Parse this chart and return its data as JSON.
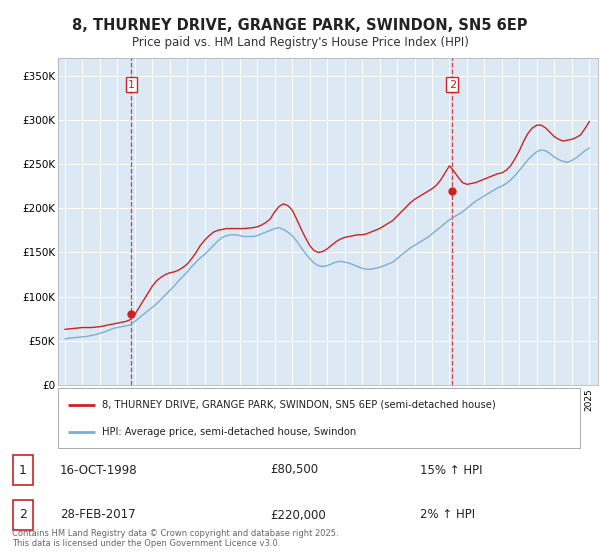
{
  "title_line1": "8, THURNEY DRIVE, GRANGE PARK, SWINDON, SN5 6EP",
  "title_line2": "Price paid vs. HM Land Registry's House Price Index (HPI)",
  "background_color": "#ffffff",
  "plot_bg_color": "#dce9f5",
  "grid_color": "#ffffff",
  "red_color": "#cc2222",
  "blue_color": "#7aaed6",
  "vline_color": "#cc2222",
  "ylim_min": 0,
  "ylim_max": 370000,
  "yticks": [
    0,
    50000,
    100000,
    150000,
    200000,
    250000,
    300000,
    350000
  ],
  "ytick_labels": [
    "£0",
    "£50K",
    "£100K",
    "£150K",
    "£200K",
    "£250K",
    "£300K",
    "£350K"
  ],
  "sale1_year": 1998.79,
  "sale1_price": 80500,
  "sale2_year": 2017.16,
  "sale2_price": 220000,
  "legend_line1": "8, THURNEY DRIVE, GRANGE PARK, SWINDON, SN5 6EP (semi-detached house)",
  "legend_line2": "HPI: Average price, semi-detached house, Swindon",
  "sale1_date_str": "16-OCT-1998",
  "sale1_price_str": "£80,500",
  "sale1_hpi_str": "15% ↑ HPI",
  "sale2_date_str": "28-FEB-2017",
  "sale2_price_str": "£220,000",
  "sale2_hpi_str": "2% ↑ HPI",
  "footnote": "Contains HM Land Registry data © Crown copyright and database right 2025.\nThis data is licensed under the Open Government Licence v3.0.",
  "hpi_x": [
    1995.0,
    1995.25,
    1995.5,
    1995.75,
    1996.0,
    1996.25,
    1996.5,
    1996.75,
    1997.0,
    1997.25,
    1997.5,
    1997.75,
    1998.0,
    1998.25,
    1998.5,
    1998.75,
    1999.0,
    1999.25,
    1999.5,
    1999.75,
    2000.0,
    2000.25,
    2000.5,
    2000.75,
    2001.0,
    2001.25,
    2001.5,
    2001.75,
    2002.0,
    2002.25,
    2002.5,
    2002.75,
    2003.0,
    2003.25,
    2003.5,
    2003.75,
    2004.0,
    2004.25,
    2004.5,
    2004.75,
    2005.0,
    2005.25,
    2005.5,
    2005.75,
    2006.0,
    2006.25,
    2006.5,
    2006.75,
    2007.0,
    2007.25,
    2007.5,
    2007.75,
    2008.0,
    2008.25,
    2008.5,
    2008.75,
    2009.0,
    2009.25,
    2009.5,
    2009.75,
    2010.0,
    2010.25,
    2010.5,
    2010.75,
    2011.0,
    2011.25,
    2011.5,
    2011.75,
    2012.0,
    2012.25,
    2012.5,
    2012.75,
    2013.0,
    2013.25,
    2013.5,
    2013.75,
    2014.0,
    2014.25,
    2014.5,
    2014.75,
    2015.0,
    2015.25,
    2015.5,
    2015.75,
    2016.0,
    2016.25,
    2016.5,
    2016.75,
    2017.0,
    2017.25,
    2017.5,
    2017.75,
    2018.0,
    2018.25,
    2018.5,
    2018.75,
    2019.0,
    2019.25,
    2019.5,
    2019.75,
    2020.0,
    2020.25,
    2020.5,
    2020.75,
    2021.0,
    2021.25,
    2021.5,
    2021.75,
    2022.0,
    2022.25,
    2022.5,
    2022.75,
    2023.0,
    2023.25,
    2023.5,
    2023.75,
    2024.0,
    2024.25,
    2024.5,
    2024.75,
    2025.0
  ],
  "hpi_y": [
    52000,
    53000,
    53500,
    54000,
    54500,
    55000,
    56000,
    57000,
    58500,
    60000,
    62000,
    64000,
    65000,
    66000,
    67000,
    68000,
    72000,
    76000,
    80000,
    84000,
    88000,
    92000,
    97000,
    102000,
    107000,
    112000,
    118000,
    123000,
    128000,
    134000,
    139000,
    144000,
    148000,
    153000,
    158000,
    163000,
    167000,
    169000,
    170000,
    170000,
    169000,
    168000,
    168000,
    168000,
    169000,
    171000,
    173000,
    175000,
    177000,
    178000,
    176000,
    173000,
    169000,
    163000,
    156000,
    149000,
    143000,
    138000,
    135000,
    134000,
    135000,
    137000,
    139000,
    140000,
    139000,
    138000,
    136000,
    134000,
    132000,
    131000,
    131000,
    132000,
    133000,
    135000,
    137000,
    139000,
    143000,
    147000,
    151000,
    155000,
    158000,
    161000,
    164000,
    167000,
    171000,
    175000,
    179000,
    183000,
    187000,
    190000,
    193000,
    196000,
    200000,
    204000,
    208000,
    211000,
    214000,
    217000,
    220000,
    223000,
    225000,
    228000,
    232000,
    237000,
    243000,
    249000,
    255000,
    260000,
    264000,
    266000,
    265000,
    262000,
    258000,
    255000,
    253000,
    252000,
    254000,
    257000,
    261000,
    265000,
    268000
  ],
  "red_x": [
    1995.0,
    1995.25,
    1995.5,
    1995.75,
    1996.0,
    1996.25,
    1996.5,
    1996.75,
    1997.0,
    1997.25,
    1997.5,
    1997.75,
    1998.0,
    1998.25,
    1998.5,
    1998.75,
    1999.0,
    1999.25,
    1999.5,
    1999.75,
    2000.0,
    2000.25,
    2000.5,
    2000.75,
    2001.0,
    2001.25,
    2001.5,
    2001.75,
    2002.0,
    2002.25,
    2002.5,
    2002.75,
    2003.0,
    2003.25,
    2003.5,
    2003.75,
    2004.0,
    2004.25,
    2004.5,
    2004.75,
    2005.0,
    2005.25,
    2005.5,
    2005.75,
    2006.0,
    2006.25,
    2006.5,
    2006.75,
    2007.0,
    2007.25,
    2007.5,
    2007.75,
    2008.0,
    2008.25,
    2008.5,
    2008.75,
    2009.0,
    2009.25,
    2009.5,
    2009.75,
    2010.0,
    2010.25,
    2010.5,
    2010.75,
    2011.0,
    2011.25,
    2011.5,
    2011.75,
    2012.0,
    2012.25,
    2012.5,
    2012.75,
    2013.0,
    2013.25,
    2013.5,
    2013.75,
    2014.0,
    2014.25,
    2014.5,
    2014.75,
    2015.0,
    2015.25,
    2015.5,
    2015.75,
    2016.0,
    2016.25,
    2016.5,
    2016.75,
    2017.0,
    2017.25,
    2017.5,
    2017.75,
    2018.0,
    2018.25,
    2018.5,
    2018.75,
    2019.0,
    2019.25,
    2019.5,
    2019.75,
    2020.0,
    2020.25,
    2020.5,
    2020.75,
    2021.0,
    2021.25,
    2021.5,
    2021.75,
    2022.0,
    2022.25,
    2022.5,
    2022.75,
    2023.0,
    2023.25,
    2023.5,
    2023.75,
    2024.0,
    2024.25,
    2024.5,
    2024.75,
    2025.0
  ],
  "red_y": [
    63000,
    63500,
    64000,
    64500,
    65000,
    65000,
    65000,
    65500,
    66000,
    67000,
    68000,
    69000,
    70000,
    71000,
    72000,
    74000,
    80000,
    88000,
    96000,
    104000,
    112000,
    118000,
    122000,
    125000,
    127000,
    128000,
    130000,
    133000,
    137000,
    143000,
    150000,
    158000,
    164000,
    169000,
    173000,
    175000,
    176000,
    177000,
    177000,
    177000,
    177000,
    177000,
    177500,
    178000,
    179000,
    181000,
    184000,
    188000,
    196000,
    202000,
    205000,
    203000,
    198000,
    188000,
    177000,
    167000,
    158000,
    152000,
    150000,
    151000,
    154000,
    158000,
    162000,
    165000,
    167000,
    168000,
    169000,
    170000,
    170000,
    171000,
    173000,
    175000,
    177000,
    180000,
    183000,
    186000,
    191000,
    196000,
    201000,
    206000,
    210000,
    213000,
    216000,
    219000,
    222000,
    226000,
    232000,
    240000,
    248000,
    242000,
    235000,
    229000,
    227000,
    228000,
    229000,
    231000,
    233000,
    235000,
    237000,
    239000,
    240000,
    243000,
    248000,
    256000,
    265000,
    276000,
    285000,
    291000,
    294000,
    294000,
    291000,
    286000,
    281000,
    278000,
    276000,
    277000,
    278000,
    280000,
    283000,
    290000,
    298000
  ]
}
